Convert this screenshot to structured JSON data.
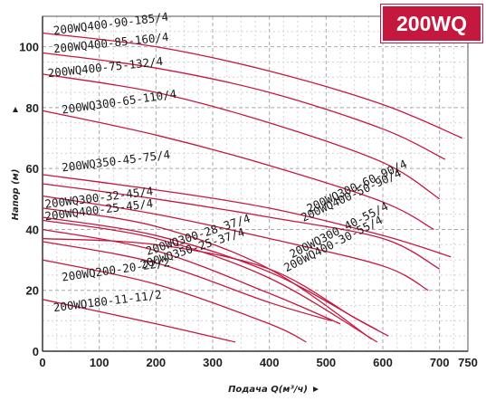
{
  "badge": {
    "text": "200WQ",
    "color": "#c5183f"
  },
  "chart_data": {
    "type": "line",
    "title": "",
    "xlabel": "Подача Q(м³/ч)",
    "ylabel": "Напор (м)",
    "xlim": [
      0,
      750
    ],
    "ylim": [
      0,
      110
    ],
    "x_ticks": [
      "0",
      "100",
      "200",
      "300",
      "400",
      "500",
      "600",
      "700",
      "750"
    ],
    "y_ticks": [
      "0",
      "20",
      "40",
      "60",
      "80",
      "100"
    ],
    "grid": true,
    "line_color": "#c5183f",
    "series": [
      {
        "name": "200WQ400-90-185/4",
        "x": [
          0,
          200,
          400,
          600,
          740
        ],
        "y": [
          104.5,
          100,
          92,
          81,
          70
        ]
      },
      {
        "name": "200WQ400-85-160/4",
        "x": [
          0,
          200,
          400,
          600,
          710
        ],
        "y": [
          98,
          93,
          85,
          73,
          63
        ]
      },
      {
        "name": "200WQ400-75-132/4",
        "x": [
          0,
          200,
          400,
          600,
          700
        ],
        "y": [
          91,
          85,
          75,
          62,
          50
        ]
      },
      {
        "name": "200WQ300-65-110/4",
        "x": [
          0,
          200,
          400,
          600,
          690
        ],
        "y": [
          79,
          71,
          61,
          49,
          40
        ]
      },
      {
        "name": "200WQ350-45-75/4",
        "x": [
          0,
          200,
          400,
          600,
          720
        ],
        "y": [
          58,
          53,
          47,
          38,
          31
        ]
      },
      {
        "name": "200WQ300-60-90/4",
        "x": [
          0,
          200,
          400,
          600,
          700
        ],
        "y": [
          55,
          50,
          44,
          37,
          27
        ]
      },
      {
        "name": "200WQ400-50-90/4",
        "x": [
          0,
          200,
          400,
          600,
          680
        ],
        "y": [
          51,
          45,
          37,
          28,
          20
        ]
      },
      {
        "name": "200WQ300-32-45/4",
        "x": [
          0,
          200,
          400,
          560,
          590
        ],
        "y": [
          44,
          38,
          26,
          10,
          7
        ]
      },
      {
        "name": "200WQ400-25-45/4",
        "x": [
          0,
          200,
          400,
          550,
          610
        ],
        "y": [
          37,
          35,
          27,
          11,
          5
        ]
      },
      {
        "name": "200WQ300-28-37/4",
        "x": [
          0,
          200,
          400,
          525
        ],
        "y": [
          40,
          33,
          19,
          9
        ]
      },
      {
        "name": "200WQ350-25-37/4",
        "x": [
          0,
          200,
          400,
          510
        ],
        "y": [
          36,
          29,
          16,
          10
        ]
      },
      {
        "name": "200WQ300-40-55/4",
        "x": [
          0,
          200,
          400,
          580
        ],
        "y": [
          47,
          41,
          27,
          4
        ]
      },
      {
        "name": "200WQ400-30-55/4",
        "x": [
          0,
          200,
          400,
          590
        ],
        "y": [
          43,
          37,
          24,
          3
        ]
      },
      {
        "name": "200WQ200-20-22/2",
        "x": [
          0,
          200,
          400,
          465
        ],
        "y": [
          30,
          22,
          9,
          3
        ]
      },
      {
        "name": "200WQ180-11-11/2",
        "x": [
          0,
          200,
          340
        ],
        "y": [
          17,
          9,
          3
        ]
      }
    ],
    "labels": [
      {
        "text": "200WQ400-90-185/4",
        "x": 20,
        "y": 104,
        "angle": -7
      },
      {
        "text": "200WQ400-85-160/4",
        "x": 20,
        "y": 98,
        "angle": -6
      },
      {
        "text": "200WQ400-75-132/4",
        "x": 10,
        "y": 90,
        "angle": -6
      },
      {
        "text": "200WQ300-65-110/4",
        "x": 35,
        "y": 78,
        "angle": -8
      },
      {
        "text": "200WQ350-45-75/4",
        "x": 35,
        "y": 59,
        "angle": -7
      },
      {
        "text": "200WQ300-60-90/4",
        "x": 470,
        "y": 45.5,
        "angle": -25
      },
      {
        "text": "200WQ400-50-90/4",
        "x": 460,
        "y": 42.5,
        "angle": -25
      },
      {
        "text": "200WQ300-32-45/4",
        "x": 5,
        "y": 47,
        "angle": -7
      },
      {
        "text": "200WQ400-25-45/4",
        "x": 5,
        "y": 43,
        "angle": -7
      },
      {
        "text": "200WQ300-28-37/4",
        "x": 185,
        "y": 31.5,
        "angle": -18
      },
      {
        "text": "200WQ350-25-37/4",
        "x": 175,
        "y": 27,
        "angle": -18
      },
      {
        "text": "200WQ300-40-55/4",
        "x": 440,
        "y": 30.5,
        "angle": -27
      },
      {
        "text": "200WQ400-30-55/4",
        "x": 430,
        "y": 26,
        "angle": -27
      },
      {
        "text": "200WQ200-20-22/2",
        "x": 35,
        "y": 23,
        "angle": -8
      },
      {
        "text": "200WQ180-11-11/2",
        "x": 20,
        "y": 13,
        "angle": -7
      }
    ]
  }
}
